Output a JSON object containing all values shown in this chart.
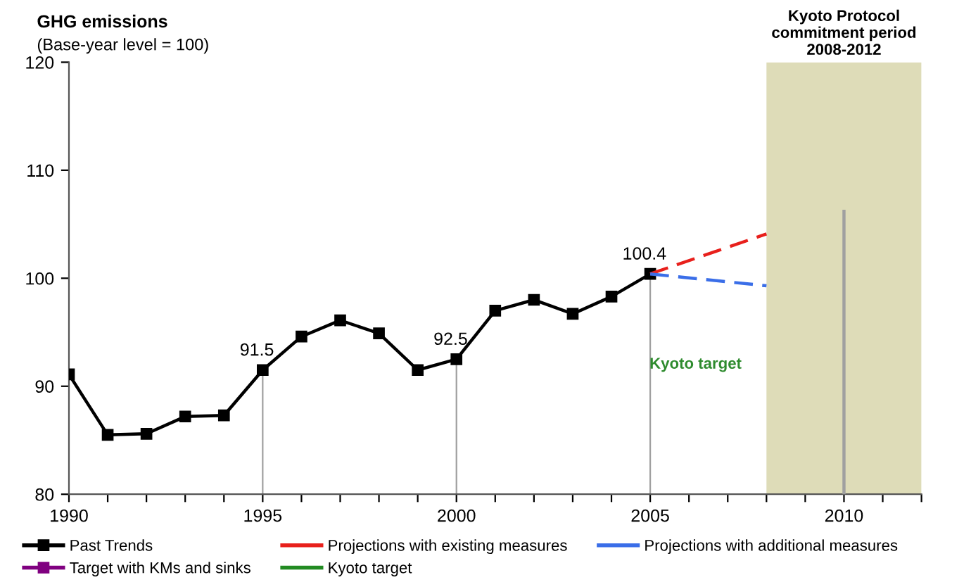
{
  "chart_data": {
    "type": "line",
    "title": "GHG emissions",
    "subtitle": "(Base-year level = 100)",
    "xlim": [
      1990,
      2012
    ],
    "ylim": [
      80,
      120
    ],
    "xticks": [
      1990,
      {
        "value": 1991,
        "label": null
      },
      {
        "value": 1992,
        "label": null
      },
      {
        "value": 1993,
        "label": null
      },
      {
        "value": 1994,
        "label": null
      },
      1995,
      {
        "value": 1996,
        "label": null
      },
      {
        "value": 1997,
        "label": null
      },
      {
        "value": 1998,
        "label": null
      },
      {
        "value": 1999,
        "label": null
      },
      2000,
      {
        "value": 2001,
        "label": null
      },
      {
        "value": 2002,
        "label": null
      },
      {
        "value": 2003,
        "label": null
      },
      {
        "value": 2004,
        "label": null
      },
      2005,
      {
        "value": 2006,
        "label": null
      },
      {
        "value": 2007,
        "label": null
      },
      {
        "value": 2008,
        "label": null
      },
      {
        "value": 2009,
        "label": null
      },
      2010,
      {
        "value": 2011,
        "label": null
      },
      {
        "value": 2012,
        "label": null
      }
    ],
    "yticks": [
      80,
      90,
      100,
      110,
      120
    ],
    "grid": false,
    "legend": "bottom",
    "bands": [
      {
        "axis": "x",
        "from": 2008,
        "to": 2012,
        "label": "Kyoto Protocol\ncommitment period\n2008-2012",
        "color": "#dedcb8"
      }
    ],
    "annotations": [
      "Kyoto target"
    ],
    "series": [
      {
        "name": "Past Trends",
        "color": "#000000",
        "marker": "square",
        "line_style": "solid",
        "x": [
          1990,
          1991,
          1992,
          1993,
          1994,
          1995,
          1996,
          1997,
          1998,
          1999,
          2000,
          2001,
          2002,
          2003,
          2004,
          2005
        ],
        "values": [
          91.1,
          85.5,
          85.6,
          87.2,
          87.3,
          91.5,
          94.6,
          96.1,
          94.9,
          91.5,
          92.5,
          97.0,
          98.0,
          96.7,
          98.3,
          100.4
        ],
        "value_labels": [
          null,
          null,
          null,
          null,
          null,
          "91.5",
          null,
          null,
          null,
          null,
          "92.5",
          null,
          null,
          null,
          null,
          "100.4"
        ]
      },
      {
        "name": "Projections with existing measures",
        "color": "#e8201c",
        "marker": "none",
        "line_style": "dashed",
        "x": [
          2005,
          2008
        ],
        "values": [
          100.4,
          104.1
        ]
      },
      {
        "name": "Projections with additional measures",
        "color": "#3a6ee8",
        "marker": "none",
        "line_style": "dashed",
        "x": [
          2005,
          2008
        ],
        "values": [
          100.4,
          99.3
        ]
      },
      {
        "name": "Target with KMs and sinks",
        "color": "#800080",
        "marker": "square",
        "line_style": "solid"
      },
      {
        "name": "Kyoto target",
        "color": "#228b22",
        "marker": "none",
        "line_style": "solid"
      },
      {
        "color": "#a0a0a0",
        "marker": "none",
        "line_style": "solid",
        "x": [
          2010,
          2010
        ],
        "values": [
          80,
          106.2
        ]
      }
    ]
  }
}
